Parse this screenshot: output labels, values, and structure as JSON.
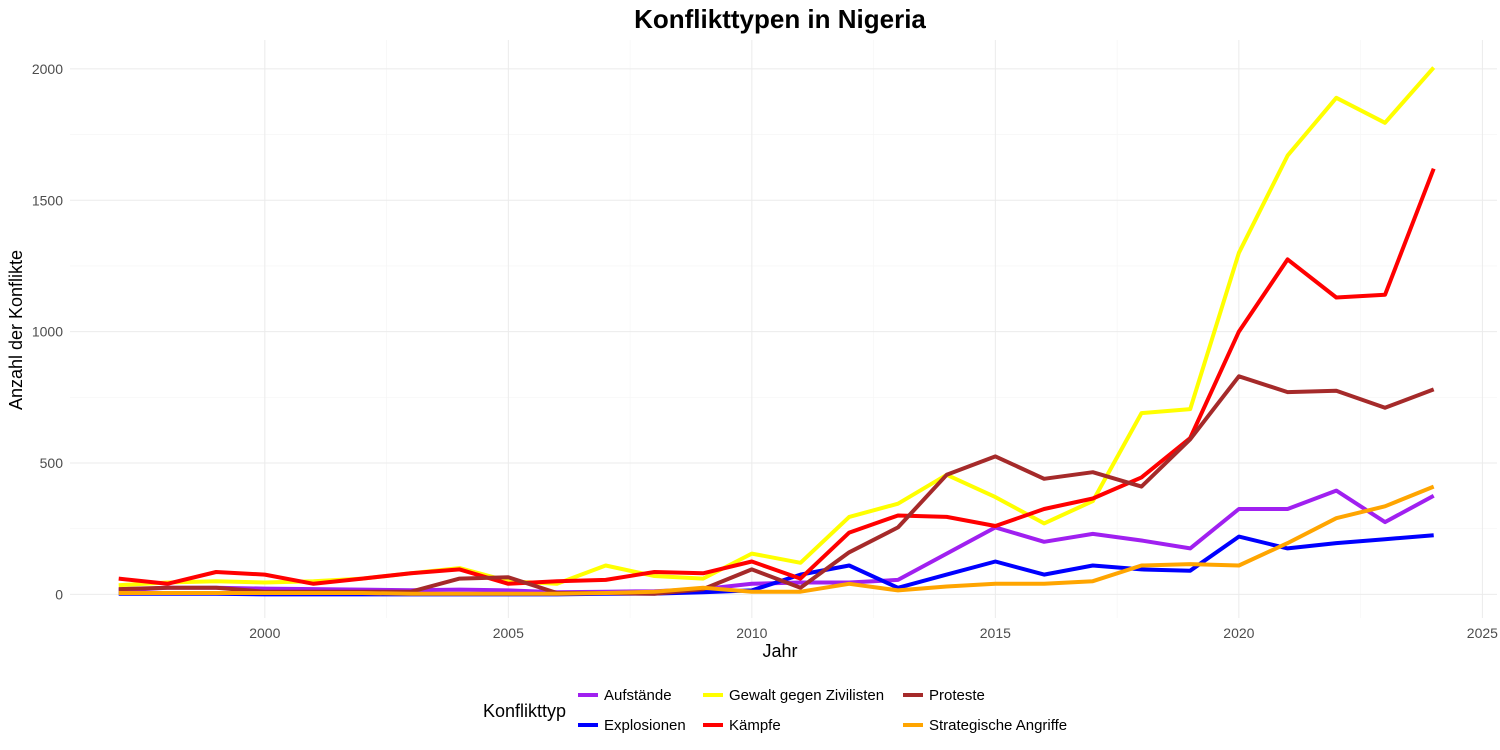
{
  "chart_data": {
    "type": "line",
    "title": "Konflikttypen in Nigeria",
    "xlabel": "Jahr",
    "ylabel": "Anzahl der Konflikte",
    "xlim": [
      1996,
      2025.3
    ],
    "ylim": [
      -90,
      2110
    ],
    "x_ticks": [
      2000,
      2005,
      2010,
      2015,
      2020,
      2025
    ],
    "y_ticks": [
      0,
      500,
      1000,
      1500,
      2000
    ],
    "grid": true,
    "legend": {
      "title": "Konflikttyp",
      "position": "bottom"
    },
    "x": [
      1997,
      1998,
      1999,
      2000,
      2001,
      2002,
      2003,
      2004,
      2005,
      2006,
      2007,
      2008,
      2009,
      2010,
      2011,
      2012,
      2013,
      2014,
      2015,
      2016,
      2017,
      2018,
      2019,
      2020,
      2021,
      2022,
      2023,
      2024
    ],
    "series": [
      {
        "name": "Aufstände",
        "color": "#a020f0",
        "values": [
          15,
          25,
          25,
          22,
          20,
          18,
          16,
          18,
          15,
          8,
          10,
          12,
          20,
          40,
          45,
          45,
          55,
          155,
          255,
          200,
          230,
          205,
          175,
          325,
          325,
          395,
          275,
          375
        ]
      },
      {
        "name": "Explosionen",
        "color": "#0000ff",
        "values": [
          2,
          2,
          2,
          0,
          0,
          0,
          0,
          0,
          0,
          0,
          2,
          3,
          8,
          15,
          75,
          110,
          25,
          75,
          125,
          75,
          110,
          95,
          90,
          220,
          175,
          195,
          210,
          225
        ]
      },
      {
        "name": "Gewalt gegen Zivilisten",
        "color": "#ffff00",
        "values": [
          35,
          45,
          50,
          45,
          50,
          60,
          80,
          100,
          50,
          40,
          110,
          70,
          60,
          155,
          120,
          295,
          345,
          455,
          370,
          270,
          355,
          690,
          705,
          1300,
          1670,
          1890,
          1795,
          2005
        ]
      },
      {
        "name": "Kämpfe",
        "color": "#ff0000",
        "values": [
          60,
          40,
          85,
          75,
          40,
          60,
          80,
          95,
          40,
          50,
          55,
          85,
          80,
          125,
          60,
          235,
          300,
          295,
          260,
          325,
          365,
          445,
          595,
          1000,
          1275,
          1130,
          1140,
          1620
        ]
      },
      {
        "name": "Proteste",
        "color": "#a52a2a",
        "values": [
          20,
          25,
          25,
          10,
          10,
          10,
          10,
          60,
          65,
          5,
          5,
          2,
          20,
          95,
          25,
          160,
          255,
          455,
          525,
          440,
          465,
          410,
          590,
          830,
          770,
          775,
          710,
          780
        ]
      },
      {
        "name": "Strategische Angriffe",
        "color": "#ffa500",
        "values": [
          5,
          5,
          5,
          5,
          5,
          5,
          2,
          2,
          2,
          2,
          5,
          10,
          25,
          10,
          10,
          40,
          15,
          30,
          40,
          40,
          50,
          110,
          115,
          110,
          195,
          290,
          335,
          410
        ]
      }
    ]
  }
}
